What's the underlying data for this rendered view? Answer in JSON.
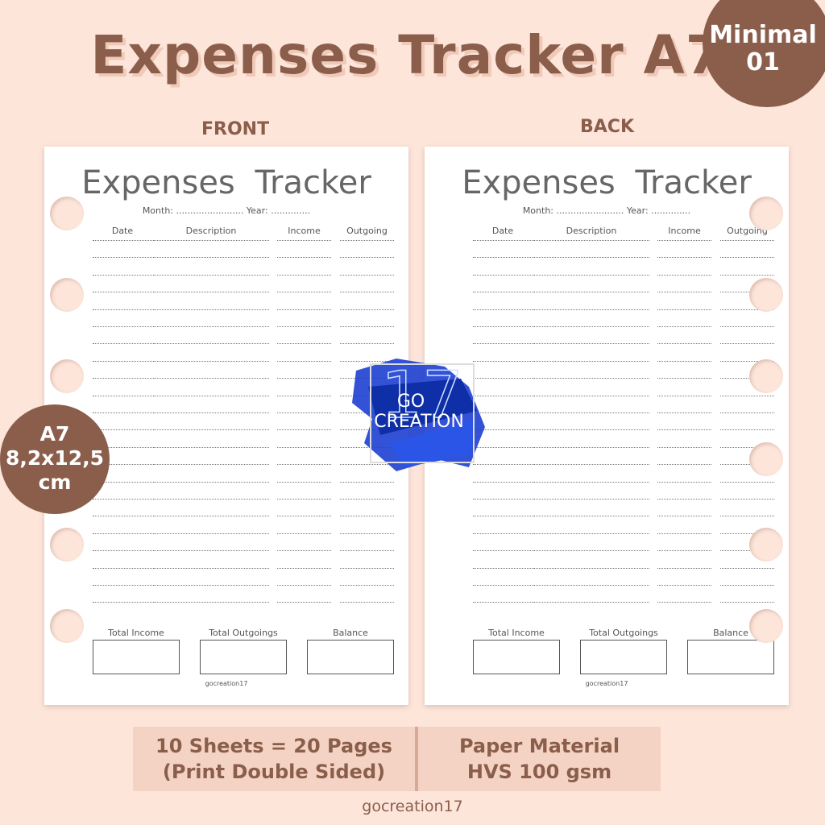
{
  "header": {
    "title": "Expenses Tracker A7",
    "badge_line1": "Minimal",
    "badge_line2": "01"
  },
  "labels": {
    "front": "FRONT",
    "back": "BACK"
  },
  "sheet": {
    "title": "Expenses Tracker",
    "month_line": "Month: ........................  Year: ..............",
    "columns": [
      "Date",
      "Description",
      "Income",
      "Outgoing"
    ],
    "totals": [
      "Total Income",
      "Total Outgoings",
      "Balance"
    ],
    "brand": "gocreation17"
  },
  "size_badge": {
    "line1": "A7",
    "line2": "8,2x12,5",
    "line3": "cm"
  },
  "logo": {
    "text1": "GO",
    "text2": "CREATION",
    "number": "17",
    "color": "#1d3fd1"
  },
  "info": {
    "left_line1": "10 Sheets = 20 Pages",
    "left_line2": "(Print Double Sided)",
    "right_line1": "Paper Material",
    "right_line2": "HVS 100 gsm"
  },
  "footer": "gocreation17",
  "colors": {
    "background": "#fde5da",
    "accent": "#8a5e4b",
    "panel": "#f4d3c4"
  }
}
